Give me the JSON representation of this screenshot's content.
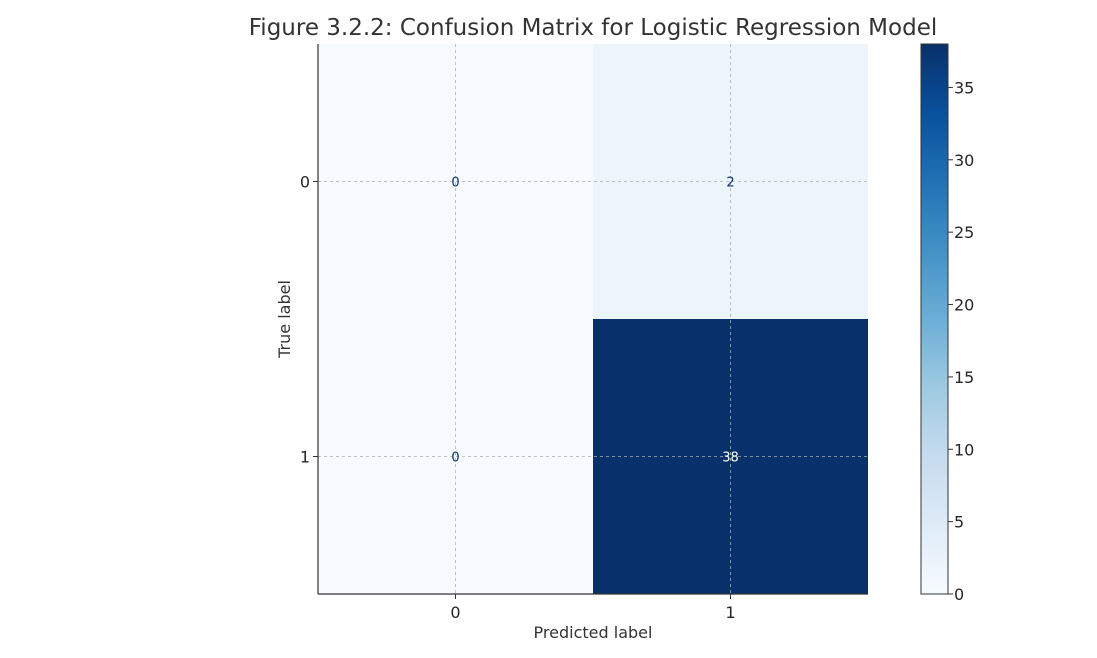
{
  "chart_data": {
    "type": "heatmap",
    "title": "Figure 3.2.2: Confusion Matrix for Logistic Regression Model",
    "xlabel": "Predicted label",
    "ylabel": "True label",
    "x_categories": [
      "0",
      "1"
    ],
    "y_categories": [
      "0",
      "1"
    ],
    "values": [
      [
        0,
        2
      ],
      [
        0,
        38
      ]
    ],
    "colormap": "Blues",
    "colorbar": {
      "range": [
        0,
        38
      ],
      "ticks": [
        0,
        5,
        10,
        15,
        20,
        25,
        30,
        35
      ]
    },
    "grid": true,
    "colors": {
      "low": "#f7fbff",
      "high": "#08306b",
      "text_dark": "#08306b",
      "text_light": "#f7fbff"
    }
  }
}
